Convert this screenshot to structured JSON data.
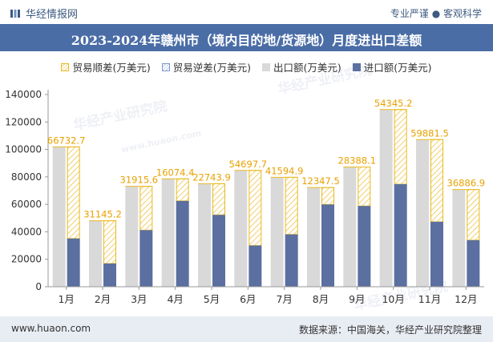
{
  "header": {
    "brand": "华经情报网",
    "tagline": "专业严谨 ● 客观科学"
  },
  "footer": {
    "url": "www.huaon.com",
    "source": "数据来源：中国海关，华经产业研究院整理"
  },
  "watermark": {
    "text1": "华经产业研究院",
    "text2": "www.huaon.com"
  },
  "colors": {
    "title_bg": "#4a6da6",
    "export": "#d9d9d9",
    "import": "#5b6fa0",
    "surplus": "#e8b923",
    "deficit": "#7a99c9",
    "surplus_label": "#e8a100"
  },
  "chart_data": {
    "type": "bar",
    "title": "2023-2024年赣州市（境内目的地/货源地）月度进出口差额",
    "categories": [
      "1月",
      "2月",
      "3月",
      "4月",
      "5月",
      "6月",
      "7月",
      "8月",
      "9月",
      "10月",
      "11月",
      "12月"
    ],
    "series": [
      {
        "name": "贸易顺差(万美元)",
        "values": [
          66732.7,
          31145.2,
          31915.6,
          16074.4,
          22743.9,
          54697.7,
          41594.9,
          12347.5,
          28388.1,
          54345.2,
          59881.5,
          36886.9
        ]
      },
      {
        "name": "贸易逆差(万美元)",
        "values": [
          0,
          0,
          0,
          0,
          0,
          0,
          0,
          0,
          0,
          0,
          0,
          0
        ]
      },
      {
        "name": "出口额(万美元)",
        "values": [
          101800,
          48100,
          73100,
          78600,
          75000,
          84700,
          79700,
          72300,
          87200,
          129000,
          107200,
          70800
        ]
      },
      {
        "name": "进口额(万美元)",
        "values": [
          35100,
          16900,
          41200,
          62500,
          52300,
          30000,
          38100,
          59900,
          58800,
          74700,
          47300,
          33900
        ]
      }
    ],
    "data_labels": [
      "66732.7",
      "31145.2",
      "31915.6",
      "16074.4",
      "22743.9",
      "54697.7",
      "41594.9",
      "12347.5",
      "28388.1",
      "54345.2",
      "59881.5",
      "36886.9"
    ],
    "ylim": [
      0,
      140000
    ],
    "yticks": [
      0,
      20000,
      40000,
      60000,
      80000,
      100000,
      120000,
      140000
    ],
    "ytick_labels": [
      "0",
      "20000",
      "40000",
      "60000",
      "80000",
      "100000",
      "120000",
      "140000"
    ],
    "legend_position": "top",
    "grid": false
  }
}
